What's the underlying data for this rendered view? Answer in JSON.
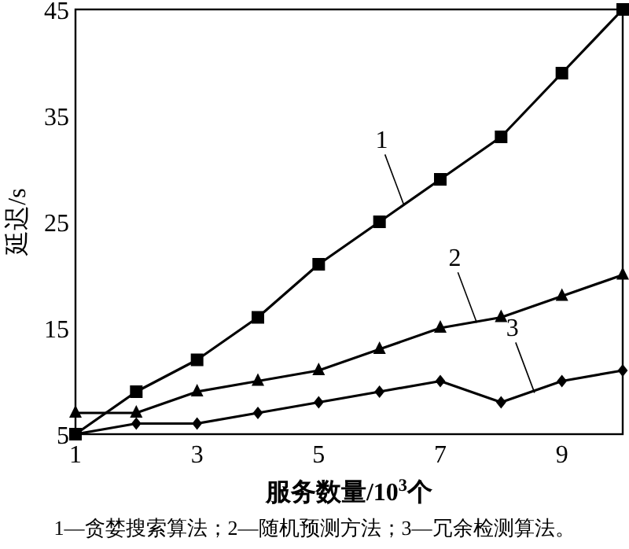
{
  "chart_data": {
    "type": "line",
    "xlabel": "服务数量/10$^{3}$个",
    "ylabel": "延迟/s",
    "x": [
      1,
      2,
      3,
      4,
      5,
      6,
      7,
      8,
      9,
      10
    ],
    "xlim": [
      1,
      10
    ],
    "xticks": [
      1,
      3,
      5,
      7,
      9
    ],
    "ylim": [
      5,
      45
    ],
    "yticks": [
      5,
      15,
      25,
      35,
      45
    ],
    "grid": false,
    "line_style": "solid",
    "series": [
      {
        "color": "#000000",
        "marker": "square",
        "values": [
          5,
          9,
          12,
          16,
          21,
          25,
          29,
          33,
          39,
          45
        ]
      },
      {
        "color": "#000000",
        "marker": "triangle",
        "values": [
          7,
          7,
          9,
          10,
          11,
          13,
          15,
          16,
          18,
          20
        ]
      },
      {
        "color": "#000000",
        "marker": "diamond",
        "values": [
          5,
          6,
          6,
          7,
          8,
          9,
          10,
          8,
          10,
          11
        ]
      }
    ],
    "annotations": [
      {
        "text": "1",
        "x": 6.4,
        "y": 26.6
      },
      {
        "text": "2",
        "x": 7.6,
        "y": 15.5
      },
      {
        "text": "3",
        "x": 8.55,
        "y": 8.9
      },
      "1—贪婪搜索算法；2—随机预测方法；3—冗余检测算法。"
    ]
  }
}
